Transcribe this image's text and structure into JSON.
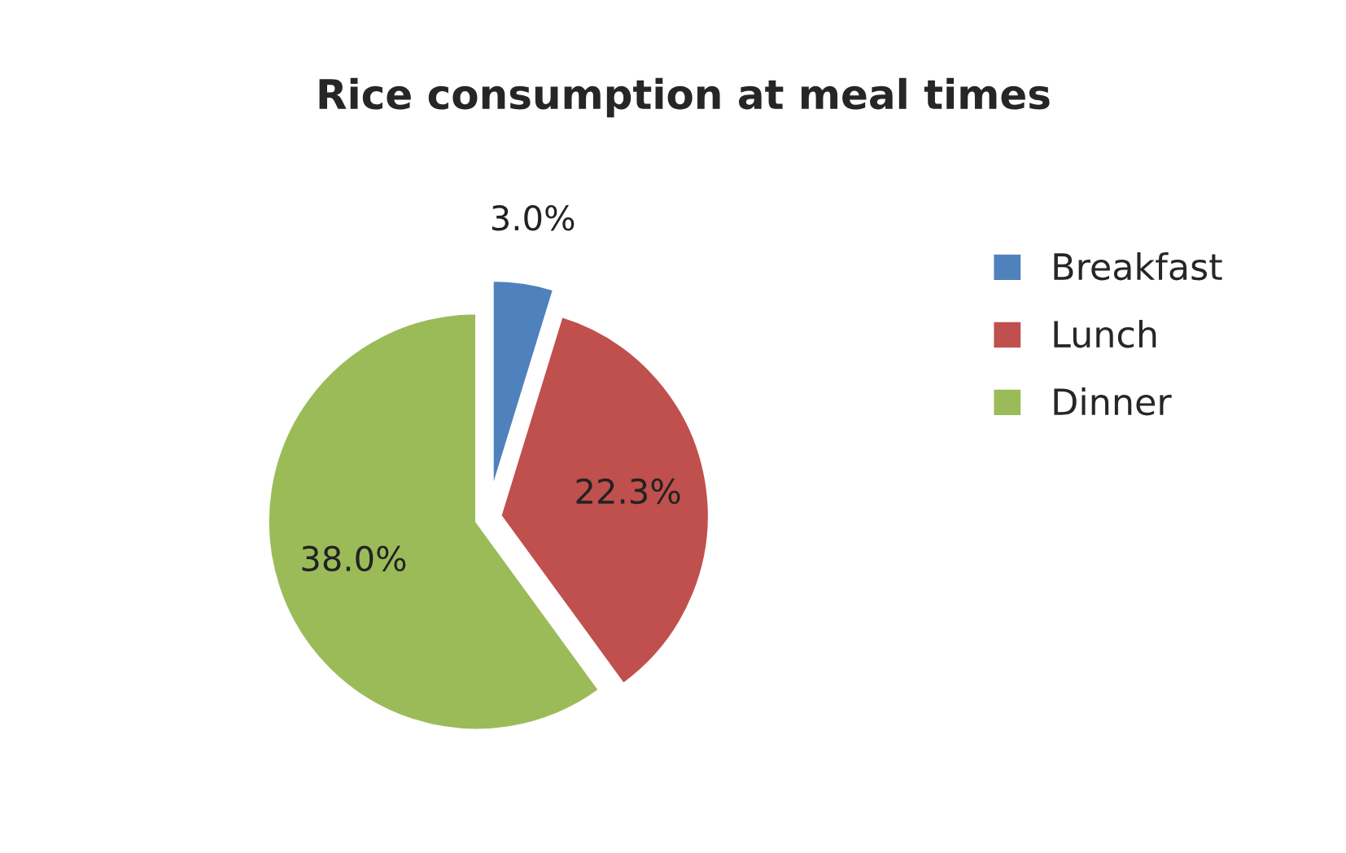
{
  "chart_data": {
    "type": "pie",
    "title": "Rice consumption at meal times",
    "categories": [
      "Breakfast",
      "Lunch",
      "Dinner"
    ],
    "values": [
      3.0,
      22.3,
      38.0
    ],
    "colors": [
      "#4f81bd",
      "#c0504d",
      "#9bbb59"
    ],
    "value_labels": [
      "3.0%",
      "22.3%",
      "38.0%"
    ],
    "legend": "right"
  }
}
